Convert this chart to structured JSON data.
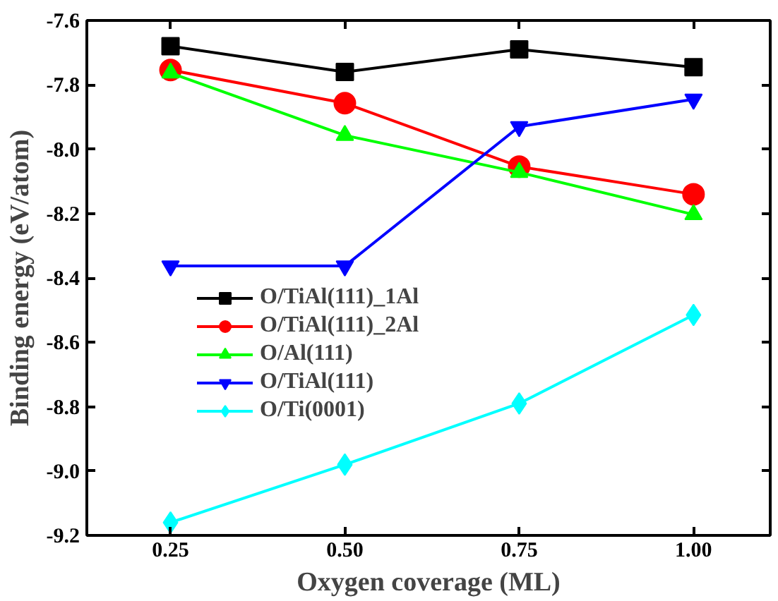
{
  "chart_data": {
    "type": "line",
    "xlabel": "Oxygen coverage (ML)",
    "ylabel": "Binding energy (eV/atom)",
    "x": [
      0.25,
      0.5,
      0.75,
      1.0
    ],
    "series": [
      {
        "name": "O/TiAl(111)_1Al",
        "color": "#000000",
        "marker": "square",
        "values": [
          -7.68,
          -7.76,
          -7.69,
          -7.745
        ]
      },
      {
        "name": "O/TiAl(111)_2Al",
        "color": "#ff0000",
        "marker": "circle",
        "values": [
          -7.754,
          -7.857,
          -8.054,
          -8.14
        ]
      },
      {
        "name": "O/Al(111)",
        "color": "#00ff00",
        "marker": "triangle",
        "values": [
          -7.763,
          -7.957,
          -8.072,
          -8.203
        ]
      },
      {
        "name": "O/TiAl(111)",
        "color": "#0000ff",
        "marker": "triangle_down",
        "values": [
          -8.363,
          -8.363,
          -7.93,
          -7.845
        ]
      },
      {
        "name": "O/Ti(0001)",
        "color": "#00ffff",
        "marker": "diamond",
        "values": [
          -9.16,
          -8.98,
          -8.79,
          -8.515
        ]
      }
    ],
    "xlim": [
      0.13,
      1.11
    ],
    "xticks": [
      0.25,
      {
        "value": 0.5,
        "label": "0.50"
      },
      0.75,
      {
        "value": 1.0,
        "label": "1.00"
      }
    ],
    "ylim": [
      -9.2,
      -7.6
    ],
    "yticks": [
      -9.2,
      {
        "value": -9.0,
        "label": "-9.0"
      },
      -8.8,
      -8.6,
      -8.4,
      -8.2,
      {
        "value": -8.0,
        "label": "-8.0"
      },
      -7.8,
      -7.6
    ],
    "legend": "left",
    "grid": false,
    "line_style": "solid"
  }
}
